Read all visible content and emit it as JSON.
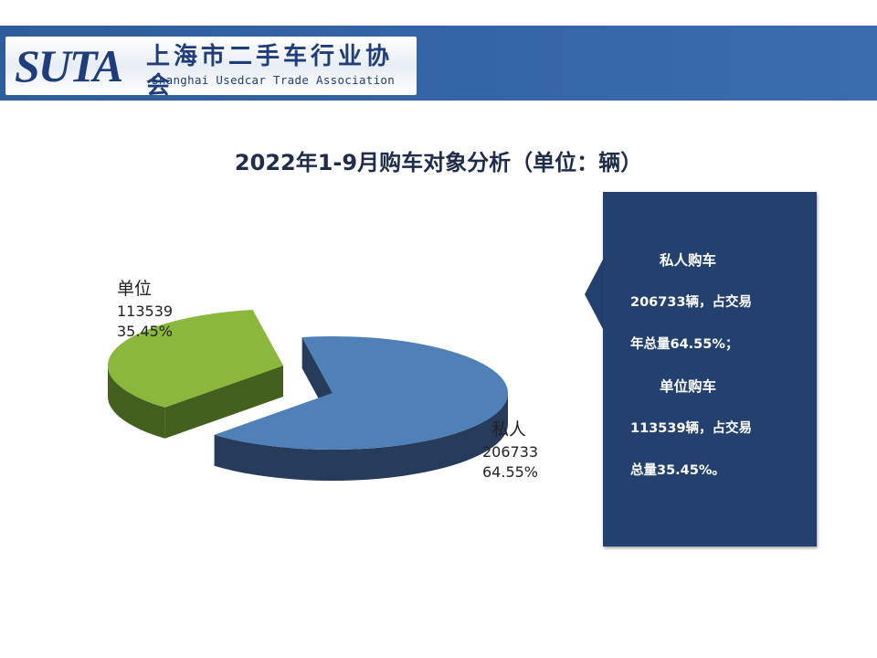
{
  "header": {
    "logo_text": "SUTA",
    "org_name_cn": "上海市二手车行业协会",
    "org_name_en": "Shanghai Usedcar Trade Association"
  },
  "chart_data": {
    "type": "pie",
    "title": "2022年1-9月购车对象分析（单位：辆）",
    "series": [
      {
        "name": "私人",
        "value": 206733,
        "percent": "64.55%",
        "color": "#4f80b8",
        "dark": "#263c5a"
      },
      {
        "name": "单位",
        "value": 113539,
        "percent": "35.45%",
        "color": "#8ab73c",
        "dark": "#44601e"
      }
    ]
  },
  "callout": {
    "lines": [
      "私人购车",
      "206733辆，占交易",
      "年总量64.55%；",
      "单位购车",
      "113539辆，占交易",
      "总量35.45%。"
    ]
  }
}
